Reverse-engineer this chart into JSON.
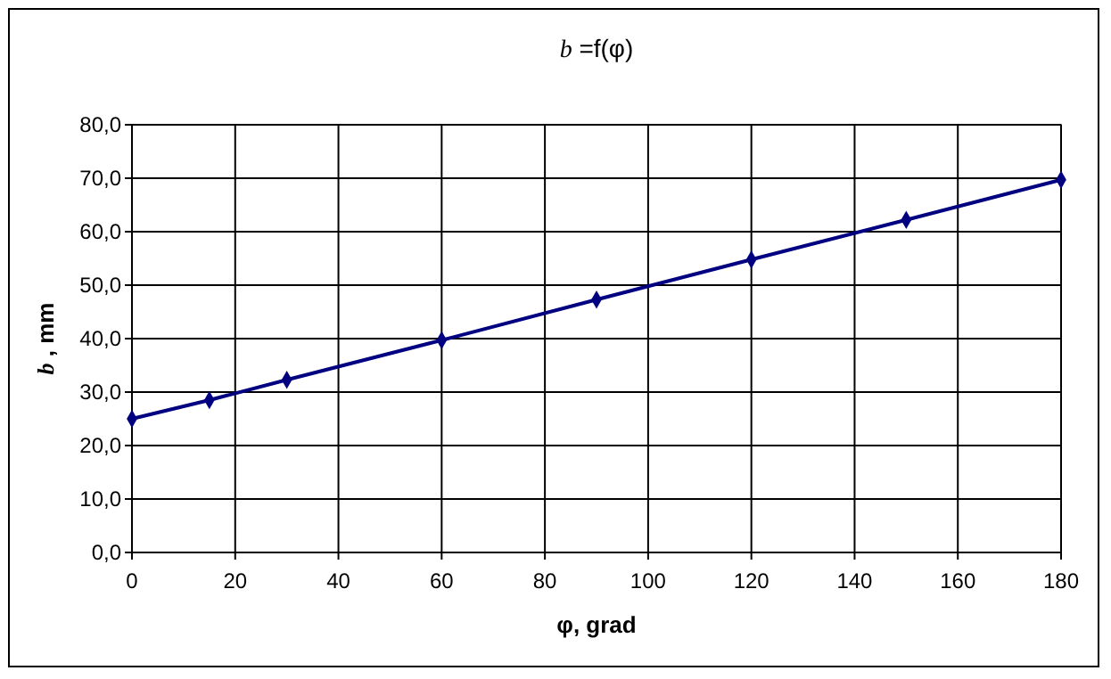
{
  "chart_data": {
    "type": "line",
    "title": "b =f(φ)",
    "xlabel": "φ, grad",
    "ylabel": "b , mm",
    "x": [
      0,
      15,
      30,
      60,
      90,
      120,
      150,
      180
    ],
    "series": [
      {
        "color": "#000080",
        "values": [
          25,
          28.5,
          32.3,
          39.7,
          47.3,
          54.8,
          62.2,
          69.7
        ]
      }
    ],
    "xlim": [
      0,
      180
    ],
    "xticks": [
      0,
      20,
      40,
      60,
      80,
      100,
      120,
      140,
      160,
      180
    ],
    "ylim": [
      0,
      80
    ],
    "yticks": [
      {
        "value": 0,
        "label": "0,0"
      },
      {
        "value": 10,
        "label": "10,0"
      },
      {
        "value": 20,
        "label": "20,0"
      },
      {
        "value": 30,
        "label": "30,0"
      },
      {
        "value": 40,
        "label": "40,0"
      },
      {
        "value": 50,
        "label": "50,0"
      },
      {
        "value": 60,
        "label": "60,0"
      },
      {
        "value": 70,
        "label": "70,0"
      },
      {
        "value": 80,
        "label": "80,0"
      }
    ],
    "grid": true,
    "marker": "diamond",
    "line_style": "solid"
  }
}
